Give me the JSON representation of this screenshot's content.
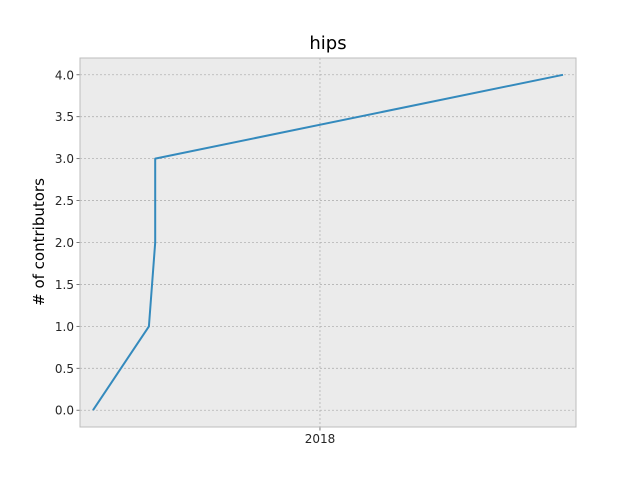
{
  "chart_data": {
    "type": "line",
    "title": "hips",
    "xlabel": "",
    "ylabel": "# of contributors",
    "x_ticks": [
      {
        "date": "2018-01-01",
        "label": "2018"
      }
    ],
    "xlim": [
      "2016-09-25",
      "2019-05-10"
    ],
    "ylim": [
      -0.2,
      4.2
    ],
    "y_ticks": [
      0.0,
      0.5,
      1.0,
      1.5,
      2.0,
      2.5,
      3.0,
      3.5,
      4.0
    ],
    "y_tick_labels": [
      "0.0",
      "0.5",
      "1.0",
      "1.5",
      "2.0",
      "2.5",
      "3.0",
      "3.5",
      "4.0"
    ],
    "grid": true,
    "series": [
      {
        "name": "",
        "color": "#348abd",
        "x": [
          "2016-10-20",
          "2017-02-05",
          "2017-02-17",
          "2017-02-17",
          "2019-04-15"
        ],
        "y": [
          0,
          1,
          2,
          3,
          4
        ]
      }
    ]
  },
  "colors": {
    "plot_background": "#ebebeb",
    "grid": "#b2b2b2",
    "frame": "#bcbcbc"
  }
}
